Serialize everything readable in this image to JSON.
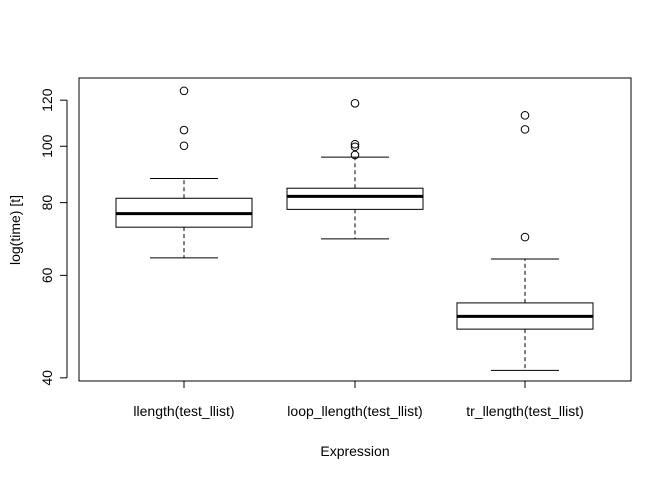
{
  "chart_data": {
    "type": "box",
    "title": "",
    "xlabel": "Expression",
    "ylabel": "log(time) [t]",
    "y_scale": "log",
    "ylim": [
      39.5,
      131
    ],
    "y_ticks": [
      40,
      60,
      80,
      100,
      120
    ],
    "y_tick_labels": [
      "40",
      "60",
      "80",
      "100",
      "120"
    ],
    "grid": false,
    "categories": [
      "llength(test_llist)",
      "loop_llength(test_llist)",
      "tr_llength(test_llist)"
    ],
    "boxes": [
      {
        "label": "llength(test_llist)",
        "whisker_low": 64.3,
        "q1": 72.6,
        "median": 76.6,
        "q3": 81.4,
        "whisker_high": 88.0,
        "outliers": [
          100.2,
          106.6,
          124.5
        ]
      },
      {
        "label": "loop_llength(test_llist)",
        "whisker_low": 69.3,
        "q1": 77.9,
        "median": 82.0,
        "q3": 84.7,
        "whisker_high": 95.8,
        "outliers": [
          96.6,
          99.8,
          100.8,
          118.5
        ]
      },
      {
        "label": "tr_llength(test_llist)",
        "whisker_low": 41.2,
        "q1": 48.5,
        "median": 51.0,
        "q3": 53.8,
        "whisker_high": 64.0,
        "outliers": [
          69.8,
          106.9,
          113.0
        ]
      }
    ],
    "colors": {
      "box_fill": "#ffffff",
      "stroke": "#000000"
    }
  }
}
